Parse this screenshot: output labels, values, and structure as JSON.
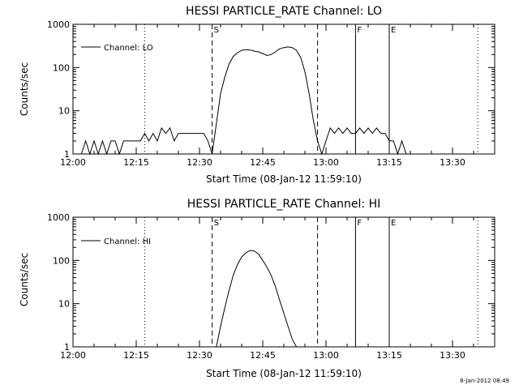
{
  "footer_text": "8-Jan-2012 08:49",
  "chart_data": [
    {
      "type": "line",
      "title": "HESSI PARTICLE_RATE Channel: LO",
      "xlabel": "Start Time (08-Jan-12 11:59:10)",
      "ylabel": "Counts/sec",
      "yscale": "log",
      "ylim": [
        1,
        1000
      ],
      "xlim": [
        "12:00",
        "13:40"
      ],
      "x_ticks": [
        "12:00",
        "12:15",
        "12:30",
        "12:45",
        "13:00",
        "13:15",
        "13:30"
      ],
      "y_ticks": [
        "1",
        "10",
        "100",
        "1000"
      ],
      "legend": {
        "position": "top-left",
        "entries": [
          "Channel: LO"
        ]
      },
      "event_markers": [
        {
          "label": "",
          "time": "12:17",
          "style": "dotted"
        },
        {
          "label": "S",
          "time": "12:33",
          "style": "dashed"
        },
        {
          "label": "",
          "time": "12:58",
          "style": "dashed"
        },
        {
          "label": "F",
          "time": "13:07",
          "style": "solid"
        },
        {
          "label": "E",
          "time": "13:15",
          "style": "solid"
        },
        {
          "label": "",
          "time": "13:36",
          "style": "dotted"
        }
      ],
      "series": [
        {
          "values": [
            [
              "12:02",
              1
            ],
            [
              "12:03",
              2
            ],
            [
              "12:04",
              1
            ],
            [
              "12:05",
              2
            ],
            [
              "12:06",
              1
            ],
            [
              "12:07",
              2
            ],
            [
              "12:08",
              1
            ],
            [
              "12:09",
              2
            ],
            [
              "12:10",
              2
            ],
            [
              "12:11",
              1
            ],
            [
              "12:12",
              2
            ],
            [
              "12:13",
              2
            ],
            [
              "12:14",
              2
            ],
            [
              "12:15",
              2
            ],
            [
              "12:16",
              2
            ],
            [
              "12:17",
              3
            ],
            [
              "12:18",
              2
            ],
            [
              "12:19",
              3
            ],
            [
              "12:20",
              2
            ],
            [
              "12:21",
              4
            ],
            [
              "12:22",
              3
            ],
            [
              "12:23",
              4
            ],
            [
              "12:24",
              2
            ],
            [
              "12:25",
              3
            ],
            [
              "12:26",
              3
            ],
            [
              "12:27",
              3
            ],
            [
              "12:28",
              3
            ],
            [
              "12:29",
              3
            ],
            [
              "12:30",
              3
            ],
            [
              "12:31",
              3
            ],
            [
              "12:32",
              2
            ],
            [
              "12:33",
              1
            ],
            [
              "12:34",
              5
            ],
            [
              "12:35",
              25
            ],
            [
              "12:36",
              60
            ],
            [
              "12:37",
              120
            ],
            [
              "12:38",
              180
            ],
            [
              "12:39",
              220
            ],
            [
              "12:40",
              250
            ],
            [
              "12:41",
              260
            ],
            [
              "12:42",
              255
            ],
            [
              "12:43",
              240
            ],
            [
              "12:44",
              230
            ],
            [
              "12:45",
              210
            ],
            [
              "12:46",
              190
            ],
            [
              "12:47",
              200
            ],
            [
              "12:48",
              230
            ],
            [
              "12:49",
              270
            ],
            [
              "12:50",
              290
            ],
            [
              "12:51",
              300
            ],
            [
              "12:52",
              290
            ],
            [
              "12:53",
              250
            ],
            [
              "12:54",
              170
            ],
            [
              "12:55",
              80
            ],
            [
              "12:56",
              25
            ],
            [
              "12:57",
              6
            ],
            [
              "12:58",
              2
            ],
            [
              "12:59",
              1
            ],
            [
              "13:00",
              2
            ],
            [
              "13:01",
              4
            ],
            [
              "13:02",
              3
            ],
            [
              "13:03",
              4
            ],
            [
              "13:04",
              3
            ],
            [
              "13:05",
              4
            ],
            [
              "13:06",
              3
            ],
            [
              "13:07",
              3
            ],
            [
              "13:08",
              4
            ],
            [
              "13:09",
              3
            ],
            [
              "13:10",
              4
            ],
            [
              "13:11",
              3
            ],
            [
              "13:12",
              4
            ],
            [
              "13:13",
              3
            ],
            [
              "13:14",
              3
            ],
            [
              "13:15",
              2
            ],
            [
              "13:16",
              2
            ],
            [
              "13:17",
              1
            ],
            [
              "13:18",
              2
            ],
            [
              "13:19",
              1
            ]
          ]
        }
      ]
    },
    {
      "type": "line",
      "title": "HESSI PARTICLE_RATE Channel: HI",
      "xlabel": "Start Time (08-Jan-12 11:59:10)",
      "ylabel": "Counts/sec",
      "yscale": "log",
      "ylim": [
        1,
        1000
      ],
      "xlim": [
        "12:00",
        "13:40"
      ],
      "x_ticks": [
        "12:00",
        "12:15",
        "12:30",
        "12:45",
        "13:00",
        "13:15",
        "13:30"
      ],
      "y_ticks": [
        "1",
        "10",
        "100",
        "1000"
      ],
      "legend": {
        "position": "top-left",
        "entries": [
          "Channel: HI"
        ]
      },
      "event_markers": [
        {
          "label": "",
          "time": "12:17",
          "style": "dotted"
        },
        {
          "label": "S",
          "time": "12:33",
          "style": "dashed"
        },
        {
          "label": "",
          "time": "12:58",
          "style": "dashed"
        },
        {
          "label": "F",
          "time": "13:07",
          "style": "solid"
        },
        {
          "label": "E",
          "time": "13:15",
          "style": "solid"
        },
        {
          "label": "",
          "time": "13:36",
          "style": "dotted"
        }
      ],
      "series": [
        {
          "values": [
            [
              "12:34",
              1
            ],
            [
              "12:35",
              3
            ],
            [
              "12:36",
              8
            ],
            [
              "12:37",
              20
            ],
            [
              "12:38",
              45
            ],
            [
              "12:39",
              80
            ],
            [
              "12:40",
              120
            ],
            [
              "12:41",
              150
            ],
            [
              "12:42",
              170
            ],
            [
              "12:43",
              165
            ],
            [
              "12:44",
              140
            ],
            [
              "12:45",
              100
            ],
            [
              "12:46",
              70
            ],
            [
              "12:47",
              45
            ],
            [
              "12:48",
              25
            ],
            [
              "12:49",
              12
            ],
            [
              "12:50",
              6
            ],
            [
              "12:51",
              3
            ],
            [
              "12:52",
              1.5
            ],
            [
              "12:53",
              1
            ]
          ]
        }
      ]
    }
  ]
}
